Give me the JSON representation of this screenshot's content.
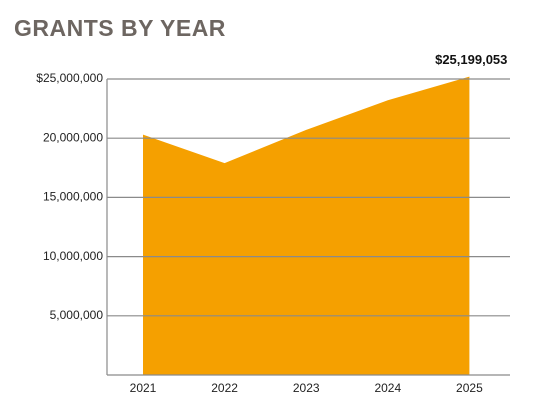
{
  "chart_data": {
    "type": "area",
    "title": "GRANTS BY YEAR",
    "categories": [
      "2021",
      "2022",
      "2023",
      "2024",
      "2025"
    ],
    "values": [
      20300000,
      17900000,
      20700000,
      23200000,
      25199053
    ],
    "value_labels": [
      null,
      null,
      null,
      null,
      "$25,199,053"
    ],
    "color": "#f5a000",
    "ylim": [
      0,
      25000000
    ],
    "yticks": [
      {
        "value": 5000000,
        "label": "5,000,000"
      },
      {
        "value": 10000000,
        "label": "10,000,000"
      },
      {
        "value": 15000000,
        "label": "15,000,000"
      },
      {
        "value": 20000000,
        "label": "20,000,000"
      },
      {
        "value": 25000000,
        "label": "$25,000,000"
      }
    ],
    "grid": true
  }
}
